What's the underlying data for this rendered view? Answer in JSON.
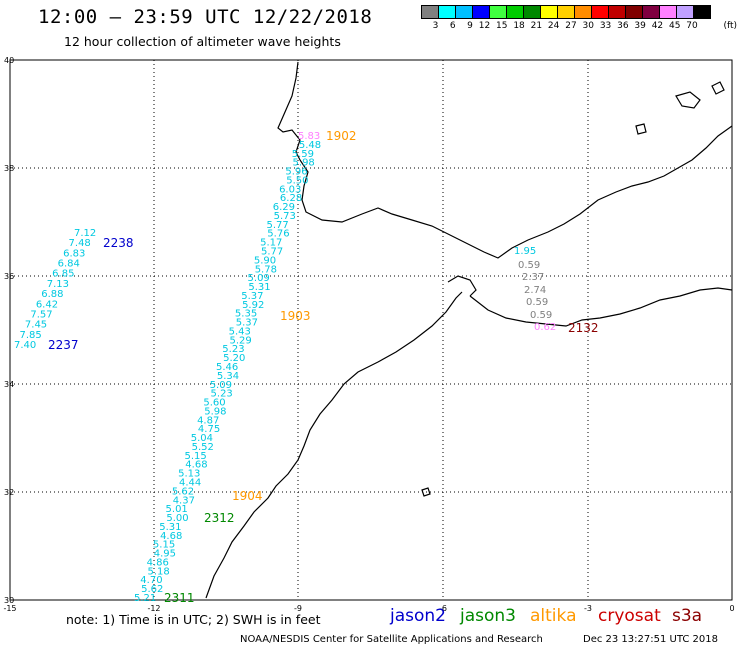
{
  "header": {
    "title": "12:00 – 23:59 UTC 12/22/2018",
    "subtitle": "12 hour collection of altimeter wave heights"
  },
  "legend": {
    "unit": "(ft)",
    "items": [
      {
        "label": "3",
        "color": "#808080"
      },
      {
        "label": "6",
        "color": "#00ffff"
      },
      {
        "label": "9",
        "color": "#00c0ff"
      },
      {
        "label": "12",
        "color": "#0000ff"
      },
      {
        "label": "15",
        "color": "#40ff40"
      },
      {
        "label": "18",
        "color": "#00cc00"
      },
      {
        "label": "21",
        "color": "#008800"
      },
      {
        "label": "24",
        "color": "#ffff00"
      },
      {
        "label": "27",
        "color": "#ffd000"
      },
      {
        "label": "30",
        "color": "#ff8c00"
      },
      {
        "label": "33",
        "color": "#ff0000"
      },
      {
        "label": "36",
        "color": "#c00000"
      },
      {
        "label": "39",
        "color": "#800000"
      },
      {
        "label": "42",
        "color": "#800040"
      },
      {
        "label": "45",
        "color": "#ff80ff"
      },
      {
        "label": "70",
        "color": "#c0a0ff"
      },
      {
        "label": "",
        "color": "#000000"
      }
    ]
  },
  "map": {
    "lon_ticks": [
      "-15",
      "-12",
      "-9",
      "-6",
      "-3",
      "0"
    ],
    "lat_ticks": [
      "40",
      "38",
      "36",
      "34",
      "32",
      "30"
    ]
  },
  "tracks": {
    "track_a": {
      "color": "#00c8e0",
      "values": [
        "5.83",
        "5.48",
        "5.59",
        "5.98",
        "5.96",
        "5.50",
        "6.03",
        "6.28",
        "6.29",
        "5.73",
        "5.77",
        "5.76",
        "5.17",
        "5.77",
        "5.90",
        "5.78",
        "5.09",
        "5.31",
        "5.37",
        "5.92",
        "5.35",
        "5.37",
        "5.43",
        "5.29",
        "5.23",
        "5.20",
        "5.46",
        "5.34",
        "5.09",
        "5.23",
        "5.60",
        "5.98",
        "4.87",
        "4.75",
        "5.04",
        "5.52",
        "5.15",
        "4.68",
        "5.13",
        "4.44",
        "5.62",
        "4.37",
        "5.01",
        "5.00",
        "5.31",
        "4.68",
        "5.15",
        "4.95",
        "4.86",
        "5.18",
        "4.70",
        "5.62",
        "5.21"
      ]
    },
    "track_b": {
      "color": "#00c8e0",
      "values": [
        "7.12",
        "7.48",
        "6.83",
        "6.84",
        "6.85",
        "7.13",
        "6.88",
        "6.42",
        "7.57",
        "7.45",
        "7.85",
        "7.40"
      ]
    },
    "track_c": {
      "color": "#808080",
      "values": [
        "1.95",
        "0.59",
        "2.37",
        "2.74",
        "0.59",
        "0.59",
        "0.62"
      ]
    },
    "time_labels": [
      {
        "text": "1902",
        "color": "#ff9900"
      },
      {
        "text": "2238",
        "color": "#0000cc"
      },
      {
        "text": "1903",
        "color": "#ff9900"
      },
      {
        "text": "2237",
        "color": "#0000cc"
      },
      {
        "text": "2132",
        "color": "#8b0000"
      },
      {
        "text": "1904",
        "color": "#ff9900"
      },
      {
        "text": "2312",
        "color": "#008800"
      },
      {
        "text": "2311",
        "color": "#008800"
      }
    ]
  },
  "note": "note: 1) Time is in UTC; 2) SWH is in feet",
  "satellites": [
    {
      "name": "jason2",
      "color": "#0000cc"
    },
    {
      "name": "jason3",
      "color": "#008800"
    },
    {
      "name": "altika",
      "color": "#ff9900"
    },
    {
      "name": "cryosat",
      "color": "#cc0000"
    },
    {
      "name": "s3a",
      "color": "#8b0000"
    }
  ],
  "footer": {
    "source": "NOAA/NESDIS Center for Satellite Applications and Research",
    "generated": "Dec 23 13:27:51 UTC 2018"
  }
}
